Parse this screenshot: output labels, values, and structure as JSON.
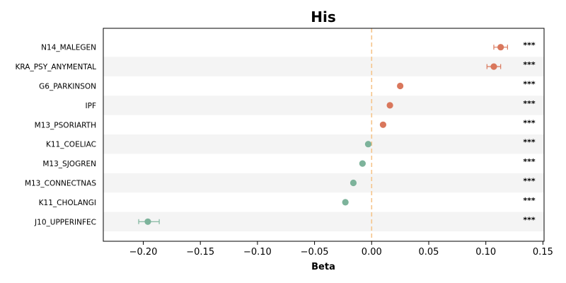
{
  "chart_data": {
    "type": "scatter",
    "title": "His",
    "xlabel": "Beta",
    "ylabel": "",
    "xlim": [
      -0.235,
      0.151
    ],
    "xticks": [
      -0.2,
      -0.15,
      -0.1,
      -0.05,
      0.0,
      0.05,
      0.1,
      0.15
    ],
    "xtick_labels": [
      "−0.20",
      "−0.15",
      "−0.10",
      "−0.05",
      "0.00",
      "0.05",
      "0.10",
      "0.15"
    ],
    "reference_line": 0.0,
    "reference_line_color": "#f5c48a",
    "positive_color": "#d9775c",
    "negative_color": "#7db39b",
    "stripe_color": "#f4f4f4",
    "grid": false,
    "points": [
      {
        "label": "N14_MALEGEN",
        "beta": 0.113,
        "ci_low": 0.107,
        "ci_high": 0.119,
        "sig": "***"
      },
      {
        "label": "KRA_PSY_ANYMENTAL",
        "beta": 0.107,
        "ci_low": 0.101,
        "ci_high": 0.113,
        "sig": "***"
      },
      {
        "label": "G6_PARKINSON",
        "beta": 0.025,
        "ci_low": 0.024,
        "ci_high": 0.026,
        "sig": "***"
      },
      {
        "label": "IPF",
        "beta": 0.016,
        "ci_low": 0.015,
        "ci_high": 0.017,
        "sig": "***"
      },
      {
        "label": "M13_PSORIARTH",
        "beta": 0.01,
        "ci_low": 0.009,
        "ci_high": 0.011,
        "sig": "***"
      },
      {
        "label": "K11_COELIAC",
        "beta": -0.003,
        "ci_low": -0.004,
        "ci_high": -0.002,
        "sig": "***"
      },
      {
        "label": "M13_SJOGREN",
        "beta": -0.008,
        "ci_low": -0.009,
        "ci_high": -0.007,
        "sig": "***"
      },
      {
        "label": "M13_CONNECTNAS",
        "beta": -0.016,
        "ci_low": -0.017,
        "ci_high": -0.015,
        "sig": "***"
      },
      {
        "label": "K11_CHOLANGI",
        "beta": -0.023,
        "ci_low": -0.024,
        "ci_high": -0.022,
        "sig": "***"
      },
      {
        "label": "J10_UPPERINFEC",
        "beta": -0.196,
        "ci_low": -0.204,
        "ci_high": -0.186,
        "sig": "***"
      }
    ]
  }
}
